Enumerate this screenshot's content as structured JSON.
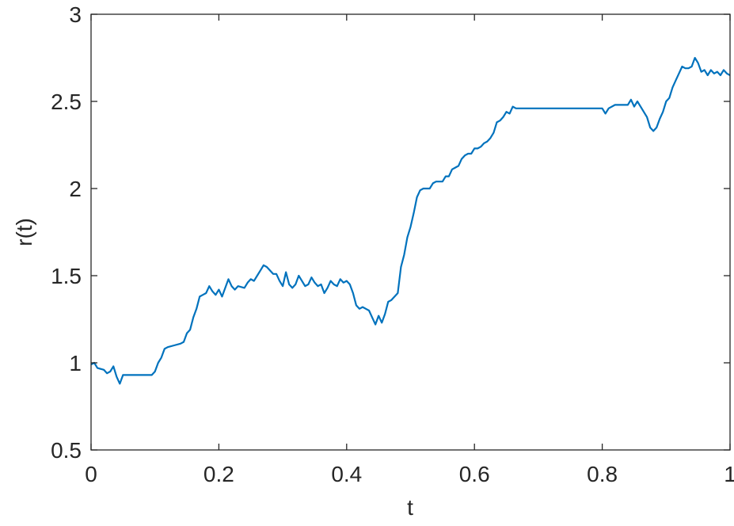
{
  "chart_data": {
    "type": "line",
    "x_label": "t",
    "y_label": "r(t)",
    "x": [
      0,
      0.005,
      0.01,
      0.02,
      0.025,
      0.03,
      0.035,
      0.04,
      0.045,
      0.05,
      0.095,
      0.1,
      0.105,
      0.11,
      0.115,
      0.12,
      0.13,
      0.14,
      0.145,
      0.15,
      0.155,
      0.16,
      0.165,
      0.17,
      0.175,
      0.18,
      0.185,
      0.19,
      0.195,
      0.2,
      0.205,
      0.21,
      0.215,
      0.22,
      0.225,
      0.23,
      0.24,
      0.245,
      0.25,
      0.255,
      0.26,
      0.265,
      0.27,
      0.275,
      0.28,
      0.285,
      0.29,
      0.295,
      0.3,
      0.305,
      0.31,
      0.315,
      0.32,
      0.325,
      0.33,
      0.335,
      0.34,
      0.345,
      0.35,
      0.355,
      0.36,
      0.365,
      0.37,
      0.375,
      0.38,
      0.385,
      0.39,
      0.395,
      0.4,
      0.405,
      0.41,
      0.415,
      0.42,
      0.425,
      0.43,
      0.435,
      0.44,
      0.445,
      0.45,
      0.455,
      0.46,
      0.465,
      0.47,
      0.475,
      0.48,
      0.485,
      0.49,
      0.495,
      0.5,
      0.505,
      0.51,
      0.515,
      0.52,
      0.53,
      0.535,
      0.54,
      0.55,
      0.555,
      0.56,
      0.565,
      0.57,
      0.575,
      0.58,
      0.585,
      0.59,
      0.595,
      0.6,
      0.605,
      0.61,
      0.615,
      0.62,
      0.625,
      0.63,
      0.635,
      0.64,
      0.645,
      0.65,
      0.655,
      0.66,
      0.665,
      0.67,
      0.8,
      0.805,
      0.81,
      0.82,
      0.84,
      0.845,
      0.85,
      0.855,
      0.86,
      0.865,
      0.87,
      0.875,
      0.88,
      0.885,
      0.89,
      0.895,
      0.9,
      0.905,
      0.91,
      0.915,
      0.92,
      0.925,
      0.93,
      0.935,
      0.94,
      0.945,
      0.95,
      0.955,
      0.96,
      0.965,
      0.97,
      0.975,
      0.98,
      0.985,
      0.99,
      0.995,
      1
    ],
    "series": [
      {
        "name": "r(t)",
        "color": "#0072BD",
        "values": [
          0.99,
          1.0,
          0.97,
          0.96,
          0.94,
          0.95,
          0.98,
          0.92,
          0.88,
          0.93,
          0.93,
          0.95,
          1.0,
          1.03,
          1.08,
          1.09,
          1.1,
          1.11,
          1.12,
          1.17,
          1.19,
          1.26,
          1.31,
          1.38,
          1.39,
          1.4,
          1.44,
          1.41,
          1.39,
          1.42,
          1.38,
          1.43,
          1.48,
          1.44,
          1.42,
          1.44,
          1.43,
          1.46,
          1.48,
          1.47,
          1.5,
          1.53,
          1.56,
          1.55,
          1.53,
          1.51,
          1.51,
          1.47,
          1.44,
          1.52,
          1.45,
          1.43,
          1.45,
          1.5,
          1.47,
          1.44,
          1.45,
          1.49,
          1.46,
          1.44,
          1.45,
          1.4,
          1.43,
          1.47,
          1.45,
          1.44,
          1.48,
          1.46,
          1.47,
          1.45,
          1.4,
          1.33,
          1.31,
          1.32,
          1.31,
          1.3,
          1.26,
          1.22,
          1.27,
          1.23,
          1.28,
          1.35,
          1.36,
          1.38,
          1.4,
          1.55,
          1.62,
          1.72,
          1.78,
          1.86,
          1.95,
          1.99,
          2.0,
          2.0,
          2.03,
          2.04,
          2.04,
          2.07,
          2.07,
          2.11,
          2.12,
          2.13,
          2.17,
          2.19,
          2.2,
          2.2,
          2.23,
          2.23,
          2.24,
          2.26,
          2.27,
          2.29,
          2.32,
          2.38,
          2.39,
          2.41,
          2.44,
          2.43,
          2.47,
          2.46,
          2.46,
          2.46,
          2.43,
          2.46,
          2.48,
          2.48,
          2.51,
          2.47,
          2.5,
          2.47,
          2.44,
          2.41,
          2.35,
          2.33,
          2.35,
          2.4,
          2.44,
          2.5,
          2.52,
          2.58,
          2.62,
          2.66,
          2.7,
          2.69,
          2.69,
          2.7,
          2.75,
          2.72,
          2.67,
          2.68,
          2.65,
          2.68,
          2.66,
          2.67,
          2.65,
          2.68,
          2.66,
          2.65
        ]
      }
    ],
    "xlim": [
      0,
      1
    ],
    "ylim": [
      0.5,
      3
    ],
    "xticks": [
      0,
      0.2,
      0.4,
      0.6,
      0.8,
      1
    ],
    "yticks": [
      0.5,
      1,
      1.5,
      2,
      2.5,
      3
    ]
  }
}
